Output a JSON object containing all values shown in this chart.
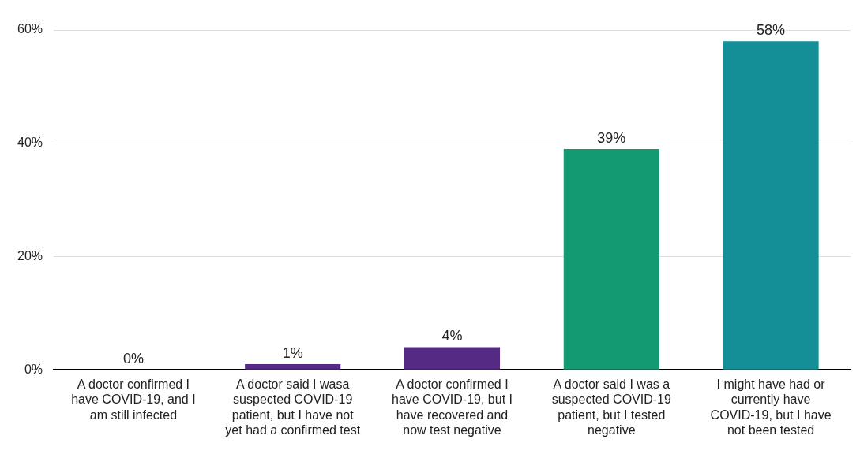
{
  "chart_data": {
    "type": "bar",
    "categories": [
      "A doctor confirmed I have COVID-19, and I am still infected",
      "A doctor said I wasa suspected COVID-19 patient, but I have not yet had a confirmed test",
      "A doctor confirmed I have COVID-19, but I have recovered and now test negative",
      "A doctor said I was a suspected COVID-19 patient, but I tested negative",
      "I might have had or currently have COVID-19, but I have not been tested"
    ],
    "values": [
      0,
      1,
      4,
      39,
      58
    ],
    "colors": [
      "#542a85",
      "#542a85",
      "#542a85",
      "#139a72",
      "#148f98"
    ],
    "value_labels": [
      "0%",
      "1%",
      "4%",
      "39%",
      "58%"
    ],
    "ylim": [
      0,
      60
    ],
    "yticks": [
      {
        "value": 0,
        "label": "0%"
      },
      {
        "value": 20,
        "label": "20%"
      },
      {
        "value": 40,
        "label": "40%"
      },
      {
        "value": 60,
        "label": "60%"
      }
    ],
    "grid": "y",
    "legend": false
  }
}
